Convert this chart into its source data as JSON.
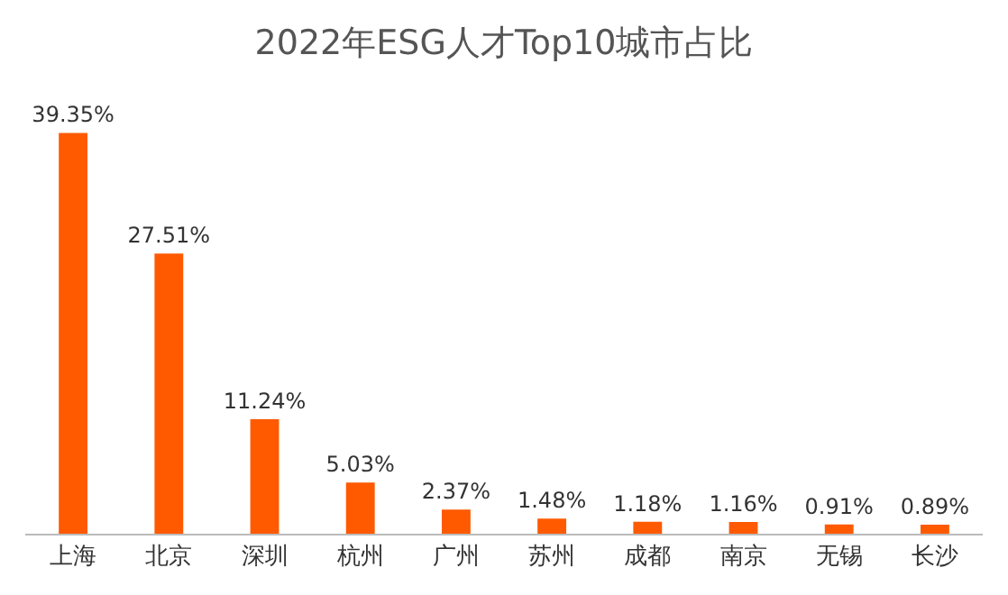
{
  "chart_data": {
    "type": "bar",
    "title": "2022年ESG人才Top10城市占比",
    "categories": [
      "上海",
      "北京",
      "深圳",
      "杭州",
      "广州",
      "苏州",
      "成都",
      "南京",
      "无锡",
      "长沙"
    ],
    "values": [
      39.35,
      27.51,
      11.24,
      5.03,
      2.37,
      1.48,
      1.18,
      1.16,
      0.91,
      0.89
    ],
    "value_labels": [
      "39.35%",
      "27.51%",
      "11.24%",
      "5.03%",
      "2.37%",
      "1.48%",
      "1.18%",
      "1.16%",
      "0.91%",
      "0.89%"
    ],
    "color": "#ff5a00",
    "legend": false
  }
}
